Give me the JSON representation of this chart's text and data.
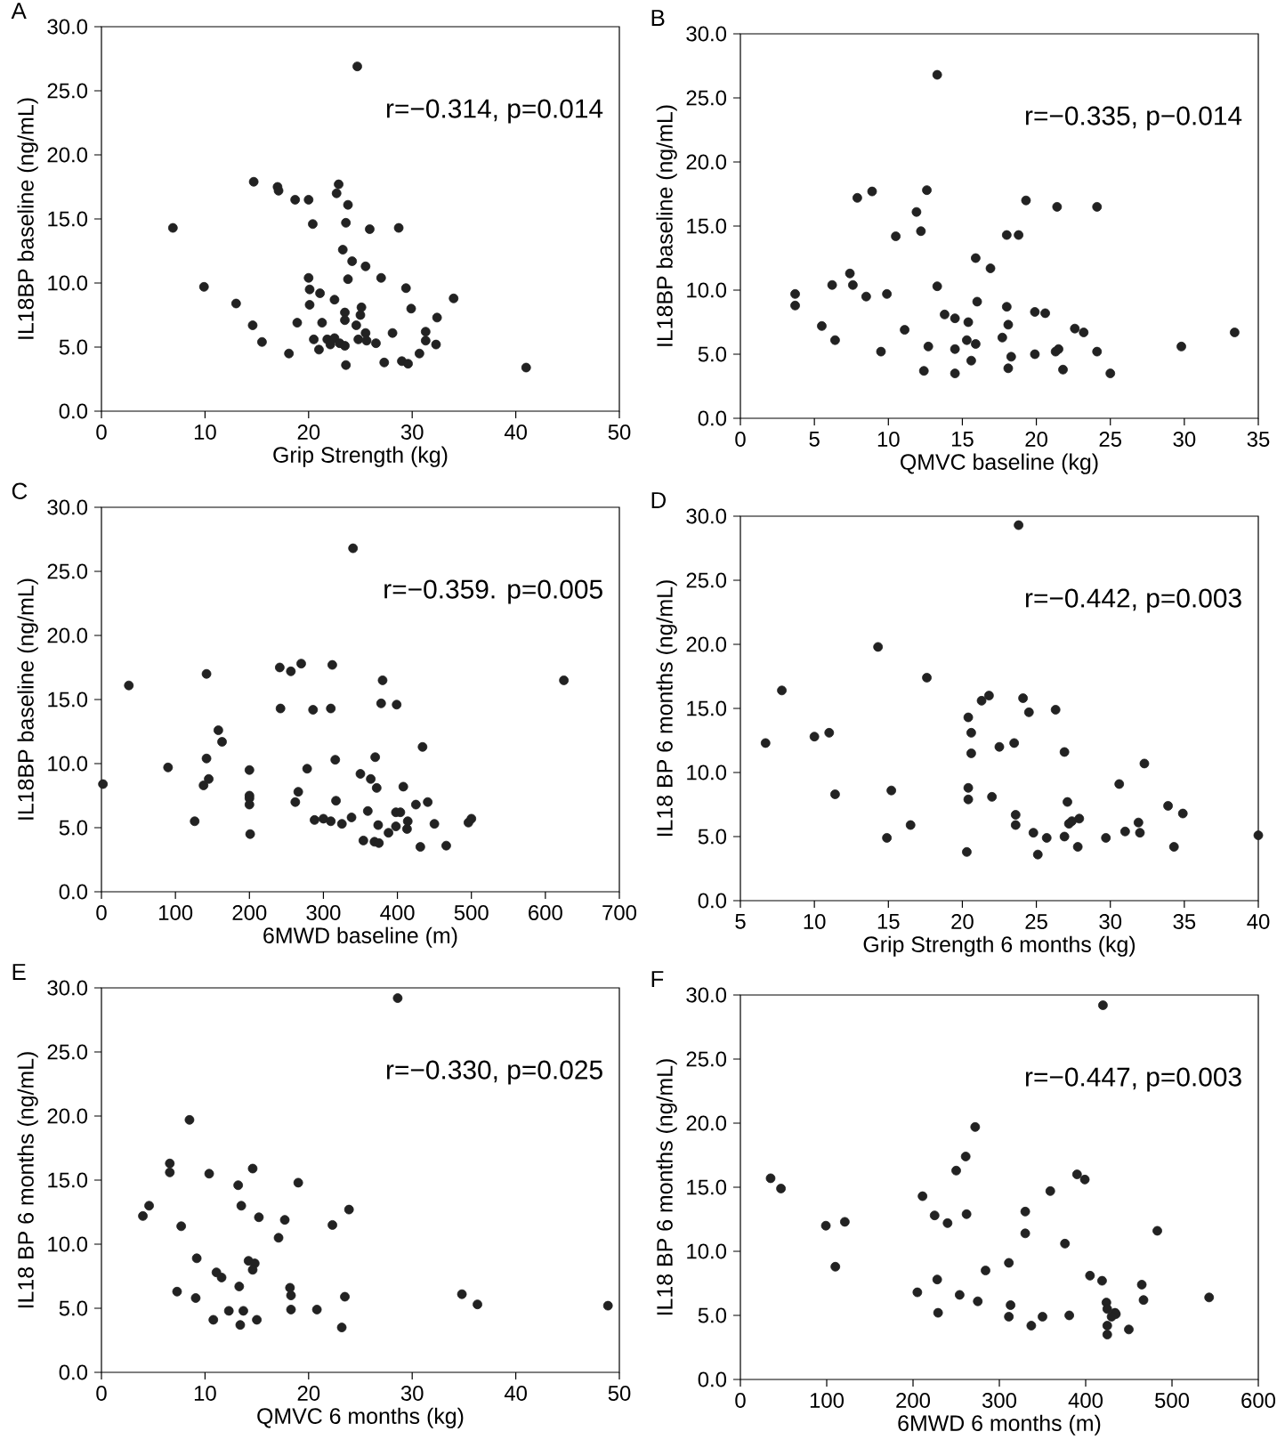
{
  "chart_data": [
    {
      "type": "scatter",
      "title": "A",
      "xlabel": "Grip Strength (kg)",
      "ylabel": "IL18BP baseline (ng/mL)",
      "annotations": [
        "r=−0.314, p=0.014"
      ],
      "marker": "circle",
      "color": "#222222",
      "grid": false,
      "xlim": [
        0,
        50
      ],
      "xticks": [
        0,
        10,
        20,
        30,
        40,
        50
      ],
      "ylim": [
        0,
        30
      ],
      "yticks": [
        {
          "value": 0,
          "label": "0.0"
        },
        {
          "value": 5,
          "label": "5.0"
        },
        {
          "value": 10,
          "label": "10.0"
        },
        {
          "value": 15,
          "label": "15.0"
        },
        {
          "value": 20,
          "label": "20.0"
        },
        {
          "value": 25,
          "label": "25.0"
        },
        {
          "value": 30,
          "label": "30.0"
        }
      ],
      "x": [
        24.7,
        14.7,
        17.0,
        17.1,
        18.7,
        20.0,
        22.9,
        22.7,
        23.8,
        6.9,
        20.4,
        23.6,
        25.9,
        28.7,
        23.3,
        24.2,
        25.5,
        20.0,
        23.8,
        27.0,
        9.9,
        20.1,
        21.1,
        22.5,
        29.4,
        34.0,
        13.0,
        20.1,
        23.5,
        25.1,
        25.0,
        29.9,
        32.4,
        14.6,
        18.9,
        21.3,
        23.5,
        24.6,
        25.5,
        28.1,
        31.3,
        15.5,
        20.5,
        21.8,
        22.5,
        23.0,
        22.1,
        23.5,
        24.8,
        25.6,
        26.5,
        31.3,
        32.3,
        18.1,
        21.0,
        27.3,
        29.0,
        29.6,
        30.7,
        23.6,
        41.0
      ],
      "values": [
        26.9,
        17.9,
        17.5,
        17.2,
        16.5,
        16.5,
        17.7,
        17.0,
        16.1,
        14.3,
        14.6,
        14.7,
        14.2,
        14.3,
        12.6,
        11.7,
        11.3,
        10.4,
        10.3,
        10.4,
        9.7,
        9.5,
        9.2,
        8.7,
        9.6,
        8.8,
        8.4,
        8.3,
        7.7,
        8.1,
        7.5,
        8.0,
        7.3,
        6.7,
        6.9,
        6.9,
        7.1,
        6.7,
        6.1,
        6.1,
        6.2,
        5.4,
        5.6,
        5.6,
        5.7,
        5.3,
        5.2,
        5.1,
        5.6,
        5.5,
        5.3,
        5.5,
        5.2,
        4.5,
        4.8,
        3.8,
        3.9,
        3.7,
        4.5,
        3.6,
        3.4
      ]
    },
    {
      "type": "scatter",
      "title": "B",
      "xlabel": "QMVC baseline (kg)",
      "ylabel": "IL18BP baseline (ng/mL)",
      "annotations": [
        "r=−0.335, p−0.014"
      ],
      "marker": "circle",
      "color": "#222222",
      "grid": false,
      "xlim": [
        0,
        35
      ],
      "xticks": [
        0,
        5,
        10,
        15,
        20,
        25,
        30,
        35
      ],
      "ylim": [
        0,
        30
      ],
      "yticks": [
        {
          "value": 0,
          "label": "0.0"
        },
        {
          "value": 5,
          "label": "5.0"
        },
        {
          "value": 10,
          "label": "10.0"
        },
        {
          "value": 15,
          "label": "15.0"
        },
        {
          "value": 20,
          "label": "20.0"
        },
        {
          "value": 25,
          "label": "25.0"
        },
        {
          "value": 30,
          "label": "30.0"
        }
      ],
      "x": [
        13.3,
        7.9,
        8.9,
        12.6,
        11.9,
        12.2,
        10.5,
        19.3,
        21.4,
        24.1,
        18.0,
        18.8,
        15.9,
        16.9,
        7.4,
        3.7,
        3.7,
        6.2,
        7.6,
        8.5,
        9.9,
        13.3,
        13.8,
        14.5,
        16.0,
        18.0,
        15.4,
        18.1,
        19.9,
        20.6,
        5.5,
        11.1,
        6.4,
        15.3,
        15.9,
        17.7,
        22.6,
        23.2,
        12.7,
        9.5,
        14.5,
        15.6,
        18.3,
        19.9,
        21.3,
        21.5,
        24.1,
        29.8,
        33.4,
        12.4,
        14.5,
        18.1,
        21.8,
        25.0
      ],
      "values": [
        26.8,
        17.2,
        17.7,
        17.8,
        16.1,
        14.6,
        14.2,
        17.0,
        16.5,
        16.5,
        14.3,
        14.3,
        12.5,
        11.7,
        11.3,
        9.7,
        8.8,
        10.4,
        10.4,
        9.5,
        9.7,
        10.3,
        8.1,
        7.8,
        9.1,
        8.7,
        7.5,
        7.3,
        8.3,
        8.2,
        7.2,
        6.9,
        6.1,
        6.1,
        5.8,
        6.3,
        7.0,
        6.7,
        5.6,
        5.2,
        5.4,
        4.5,
        4.8,
        5.0,
        5.2,
        5.4,
        5.2,
        5.6,
        6.7,
        3.7,
        3.5,
        3.9,
        3.8,
        3.5
      ]
    },
    {
      "type": "scatter",
      "title": "C",
      "xlabel": "6MWD baseline (m)",
      "ylabel": "IL18BP baseline (ng/mL)",
      "annotations": [
        "r=−0.359. p=0.005"
      ],
      "marker": "circle",
      "color": "#222222",
      "grid": false,
      "xlim": [
        0,
        700
      ],
      "xticks": [
        0,
        100,
        200,
        300,
        400,
        500,
        600,
        700
      ],
      "ylim": [
        0,
        30
      ],
      "yticks": [
        {
          "value": 0,
          "label": "0.0"
        },
        {
          "value": 5,
          "label": "5.0"
        },
        {
          "value": 10,
          "label": "10.0"
        },
        {
          "value": 15,
          "label": "15.0"
        },
        {
          "value": 20,
          "label": "20.0"
        },
        {
          "value": 25,
          "label": "25.0"
        },
        {
          "value": 30,
          "label": "30.0"
        }
      ],
      "x": [
        340,
        2,
        37,
        90,
        142,
        158,
        163,
        142,
        145,
        138,
        126,
        200,
        200,
        200,
        200,
        201,
        241,
        256,
        270,
        312,
        242,
        286,
        310,
        380,
        378,
        399,
        278,
        316,
        266,
        262,
        317,
        350,
        364,
        370,
        372,
        408,
        434,
        288,
        300,
        310,
        325,
        338,
        360,
        398,
        404,
        425,
        441,
        374,
        398,
        414,
        413,
        388,
        450,
        496,
        500,
        354,
        369,
        375,
        431,
        466,
        625
      ],
      "values": [
        26.8,
        8.4,
        16.1,
        9.7,
        17.0,
        12.6,
        11.7,
        10.4,
        8.8,
        8.3,
        5.5,
        9.5,
        7.5,
        7.3,
        6.8,
        4.5,
        17.5,
        17.2,
        17.8,
        17.7,
        14.3,
        14.2,
        14.3,
        16.5,
        14.7,
        14.6,
        9.6,
        10.3,
        7.8,
        7.0,
        7.1,
        9.2,
        8.8,
        10.5,
        8.1,
        8.2,
        11.3,
        5.6,
        5.7,
        5.5,
        5.3,
        5.8,
        6.3,
        6.2,
        6.2,
        6.8,
        7.0,
        5.2,
        5.1,
        5.5,
        4.9,
        4.6,
        5.3,
        5.4,
        5.7,
        4.0,
        3.9,
        3.8,
        3.5,
        3.6,
        16.5
      ]
    },
    {
      "type": "scatter",
      "title": "D",
      "xlabel": "Grip Strength 6 months (kg)",
      "ylabel": "IL18 BP 6 months (ng/mL)",
      "annotations": [
        "r=−0.442, p=0.003"
      ],
      "marker": "circle",
      "color": "#222222",
      "grid": false,
      "xlim": [
        5,
        40
      ],
      "xticks": [
        5,
        10,
        15,
        20,
        25,
        30,
        35,
        40
      ],
      "ylim": [
        0,
        30
      ],
      "yticks": [
        {
          "value": 0,
          "label": "0.0"
        },
        {
          "value": 5,
          "label": "5.0"
        },
        {
          "value": 10,
          "label": "10.0"
        },
        {
          "value": 15,
          "label": "15.0"
        },
        {
          "value": 20,
          "label": "20.0"
        },
        {
          "value": 25,
          "label": "25.0"
        },
        {
          "value": 30,
          "label": "30.0"
        }
      ],
      "x": [
        23.8,
        14.3,
        7.8,
        17.6,
        6.7,
        10.0,
        11.0,
        11.4,
        15.2,
        14.9,
        16.5,
        21.3,
        21.8,
        20.4,
        20.6,
        20.6,
        20.4,
        20.4,
        22.0,
        20.3,
        22.5,
        23.5,
        23.6,
        23.6,
        24.1,
        24.5,
        26.3,
        26.9,
        27.1,
        27.2,
        27.4,
        27.9,
        24.8,
        25.7,
        26.9,
        25.1,
        27.8,
        29.7,
        31.0,
        32.0,
        31.9,
        30.6,
        32.3,
        33.9,
        34.9,
        34.3,
        40.0
      ],
      "values": [
        29.3,
        19.8,
        16.4,
        17.4,
        12.3,
        12.8,
        13.1,
        8.3,
        8.6,
        4.9,
        5.9,
        15.6,
        16.0,
        14.3,
        13.1,
        11.5,
        8.8,
        7.9,
        8.1,
        3.8,
        12.0,
        12.3,
        6.7,
        5.9,
        15.8,
        14.7,
        14.9,
        11.6,
        7.7,
        6.0,
        6.2,
        6.4,
        5.3,
        4.9,
        5.0,
        3.6,
        4.2,
        4.9,
        5.4,
        5.3,
        6.1,
        9.1,
        10.7,
        7.4,
        6.8,
        4.2,
        5.1
      ]
    },
    {
      "type": "scatter",
      "title": "E",
      "xlabel": "QMVC 6 months (kg)",
      "ylabel": "IL18 BP 6 months (ng/mL)",
      "annotations": [
        "r=−0.330, p=0.025"
      ],
      "marker": "circle",
      "color": "#222222",
      "grid": false,
      "xlim": [
        0,
        50
      ],
      "xticks": [
        0,
        10,
        20,
        30,
        40,
        50
      ],
      "ylim": [
        0,
        30
      ],
      "yticks": [
        {
          "value": 0,
          "label": "0.0"
        },
        {
          "value": 5,
          "label": "5.0"
        },
        {
          "value": 10,
          "label": "10.0"
        },
        {
          "value": 15,
          "label": "15.0"
        },
        {
          "value": 20,
          "label": "20.0"
        },
        {
          "value": 25,
          "label": "25.0"
        },
        {
          "value": 30,
          "label": "30.0"
        }
      ],
      "x": [
        28.6,
        8.5,
        6.6,
        6.6,
        10.4,
        14.6,
        13.2,
        19.0,
        4.6,
        4.0,
        7.7,
        13.5,
        15.2,
        17.7,
        17.1,
        22.3,
        23.9,
        9.2,
        11.1,
        11.6,
        14.2,
        14.8,
        14.6,
        13.3,
        7.3,
        9.1,
        18.2,
        18.3,
        18.3,
        20.8,
        23.5,
        10.8,
        12.3,
        13.7,
        13.4,
        15.0,
        23.2,
        34.8,
        36.3,
        48.9
      ],
      "values": [
        29.2,
        19.7,
        16.3,
        15.6,
        15.5,
        15.9,
        14.6,
        14.8,
        13.0,
        12.2,
        11.4,
        13.0,
        12.1,
        11.9,
        10.5,
        11.5,
        12.7,
        8.9,
        7.8,
        7.4,
        8.7,
        8.5,
        8.0,
        6.7,
        6.3,
        5.8,
        6.6,
        6.0,
        4.9,
        4.9,
        5.9,
        4.1,
        4.8,
        4.8,
        3.7,
        4.1,
        3.5,
        6.1,
        5.3,
        5.2
      ]
    },
    {
      "type": "scatter",
      "title": "F",
      "xlabel": "6MWD 6 months (m)",
      "ylabel": "IL18 BP 6 months (ng/mL)",
      "annotations": [
        "r=−0.447, p=0.003"
      ],
      "marker": "circle",
      "color": "#222222",
      "grid": false,
      "xlim": [
        0,
        600
      ],
      "xticks": [
        0,
        100,
        200,
        300,
        400,
        500,
        600
      ],
      "ylim": [
        0,
        30
      ],
      "yticks": [
        {
          "value": 0,
          "label": "0.0"
        },
        {
          "value": 5,
          "label": "5.0"
        },
        {
          "value": 10,
          "label": "10.0"
        },
        {
          "value": 15,
          "label": "15.0"
        },
        {
          "value": 20,
          "label": "20.0"
        },
        {
          "value": 25,
          "label": "25.0"
        },
        {
          "value": 30,
          "label": "30.0"
        }
      ],
      "x": [
        420,
        35,
        47,
        99,
        121,
        110,
        211,
        225,
        240,
        250,
        261,
        272,
        262,
        205,
        228,
        229,
        254,
        275,
        284,
        311,
        330,
        330,
        313,
        311,
        337,
        350,
        376,
        359,
        390,
        399,
        381,
        405,
        419,
        424,
        425,
        434,
        435,
        430,
        425,
        425,
        450,
        465,
        467,
        483,
        543
      ],
      "values": [
        29.2,
        15.7,
        14.9,
        12.0,
        12.3,
        8.8,
        14.3,
        12.8,
        12.2,
        16.3,
        17.4,
        19.7,
        12.9,
        6.8,
        7.8,
        5.2,
        6.6,
        6.1,
        8.5,
        9.1,
        13.1,
        11.4,
        5.8,
        4.9,
        4.2,
        4.9,
        10.6,
        14.7,
        16.0,
        15.6,
        5.0,
        8.1,
        7.7,
        6.0,
        5.5,
        5.2,
        5.1,
        4.9,
        4.2,
        3.5,
        3.9,
        7.4,
        6.2,
        11.6,
        6.4
      ]
    }
  ]
}
